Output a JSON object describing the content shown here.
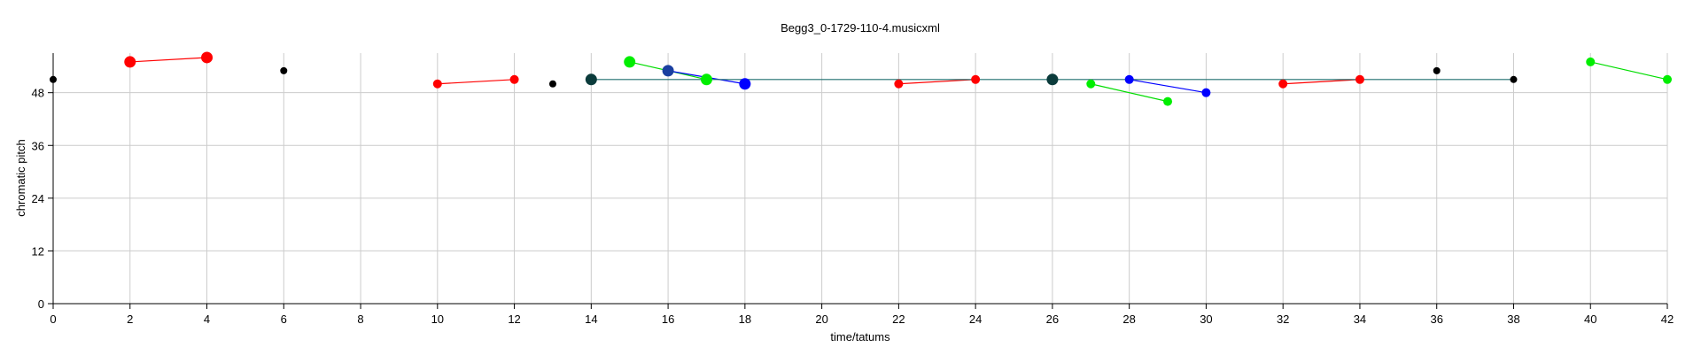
{
  "chart_data": {
    "type": "scatter",
    "title": "Begg3_0-1729-110-4.musicxml",
    "xlabel": "time/tatums",
    "ylabel": "chromatic pitch",
    "xlim": [
      0,
      42
    ],
    "ylim": [
      0,
      57
    ],
    "x_ticks": [
      0,
      2,
      4,
      6,
      8,
      10,
      12,
      14,
      16,
      18,
      20,
      22,
      24,
      26,
      28,
      30,
      32,
      34,
      36,
      38,
      40,
      42
    ],
    "y_ticks": [
      0,
      12,
      24,
      36,
      48
    ],
    "grid": true,
    "segments": [
      {
        "color": "#ff0000",
        "from": [
          2,
          55
        ],
        "to": [
          4,
          56
        ]
      },
      {
        "color": "#ff0000",
        "from": [
          10,
          50
        ],
        "to": [
          12,
          51
        ]
      },
      {
        "color": "#ff0000",
        "from": [
          22,
          50
        ],
        "to": [
          24,
          51
        ]
      },
      {
        "color": "#ff0000",
        "from": [
          32,
          50
        ],
        "to": [
          34,
          51
        ]
      },
      {
        "color": "#00dd00",
        "from": [
          15,
          55
        ],
        "to": [
          17,
          51
        ]
      },
      {
        "color": "#00dd00",
        "from": [
          27,
          50
        ],
        "to": [
          29,
          46
        ]
      },
      {
        "color": "#00dd00",
        "from": [
          40,
          55
        ],
        "to": [
          42,
          51
        ]
      },
      {
        "color": "#0000ff",
        "from": [
          16,
          53
        ],
        "to": [
          18,
          50
        ]
      },
      {
        "color": "#0000ff",
        "from": [
          28,
          51
        ],
        "to": [
          30,
          48
        ]
      },
      {
        "color": "#1f6f6f",
        "from": [
          14,
          51
        ],
        "to": [
          38,
          51
        ]
      }
    ],
    "points": [
      {
        "x": 0,
        "y": 51,
        "color": "#000000",
        "size": "small"
      },
      {
        "x": 2,
        "y": 55,
        "color": "#ff0000",
        "size": "large"
      },
      {
        "x": 4,
        "y": 56,
        "color": "#ff0000",
        "size": "large"
      },
      {
        "x": 6,
        "y": 53,
        "color": "#000000",
        "size": "small"
      },
      {
        "x": 10,
        "y": 50,
        "color": "#ff0000",
        "size": "medium"
      },
      {
        "x": 12,
        "y": 51,
        "color": "#ff0000",
        "size": "medium"
      },
      {
        "x": 13,
        "y": 50,
        "color": "#000000",
        "size": "small"
      },
      {
        "x": 14,
        "y": 51,
        "color": "#0b3b3b",
        "size": "large"
      },
      {
        "x": 15,
        "y": 55,
        "color": "#00ee00",
        "size": "large"
      },
      {
        "x": 16,
        "y": 53,
        "color": "#1a3fa0",
        "size": "large"
      },
      {
        "x": 17,
        "y": 51,
        "color": "#00ee00",
        "size": "large"
      },
      {
        "x": 18,
        "y": 50,
        "color": "#0000ff",
        "size": "large"
      },
      {
        "x": 22,
        "y": 50,
        "color": "#ff0000",
        "size": "medium"
      },
      {
        "x": 24,
        "y": 51,
        "color": "#ff0000",
        "size": "medium"
      },
      {
        "x": 26,
        "y": 51,
        "color": "#0b3b3b",
        "size": "large"
      },
      {
        "x": 27,
        "y": 50,
        "color": "#00ee00",
        "size": "medium"
      },
      {
        "x": 28,
        "y": 51,
        "color": "#0000ff",
        "size": "medium"
      },
      {
        "x": 29,
        "y": 46,
        "color": "#00ee00",
        "size": "medium"
      },
      {
        "x": 30,
        "y": 48,
        "color": "#0000ff",
        "size": "medium"
      },
      {
        "x": 32,
        "y": 50,
        "color": "#ff0000",
        "size": "medium"
      },
      {
        "x": 34,
        "y": 51,
        "color": "#ff0000",
        "size": "medium"
      },
      {
        "x": 36,
        "y": 53,
        "color": "#000000",
        "size": "small"
      },
      {
        "x": 38,
        "y": 51,
        "color": "#000000",
        "size": "small"
      },
      {
        "x": 40,
        "y": 55,
        "color": "#00ee00",
        "size": "medium"
      },
      {
        "x": 42,
        "y": 51,
        "color": "#00ee00",
        "size": "medium"
      }
    ]
  }
}
